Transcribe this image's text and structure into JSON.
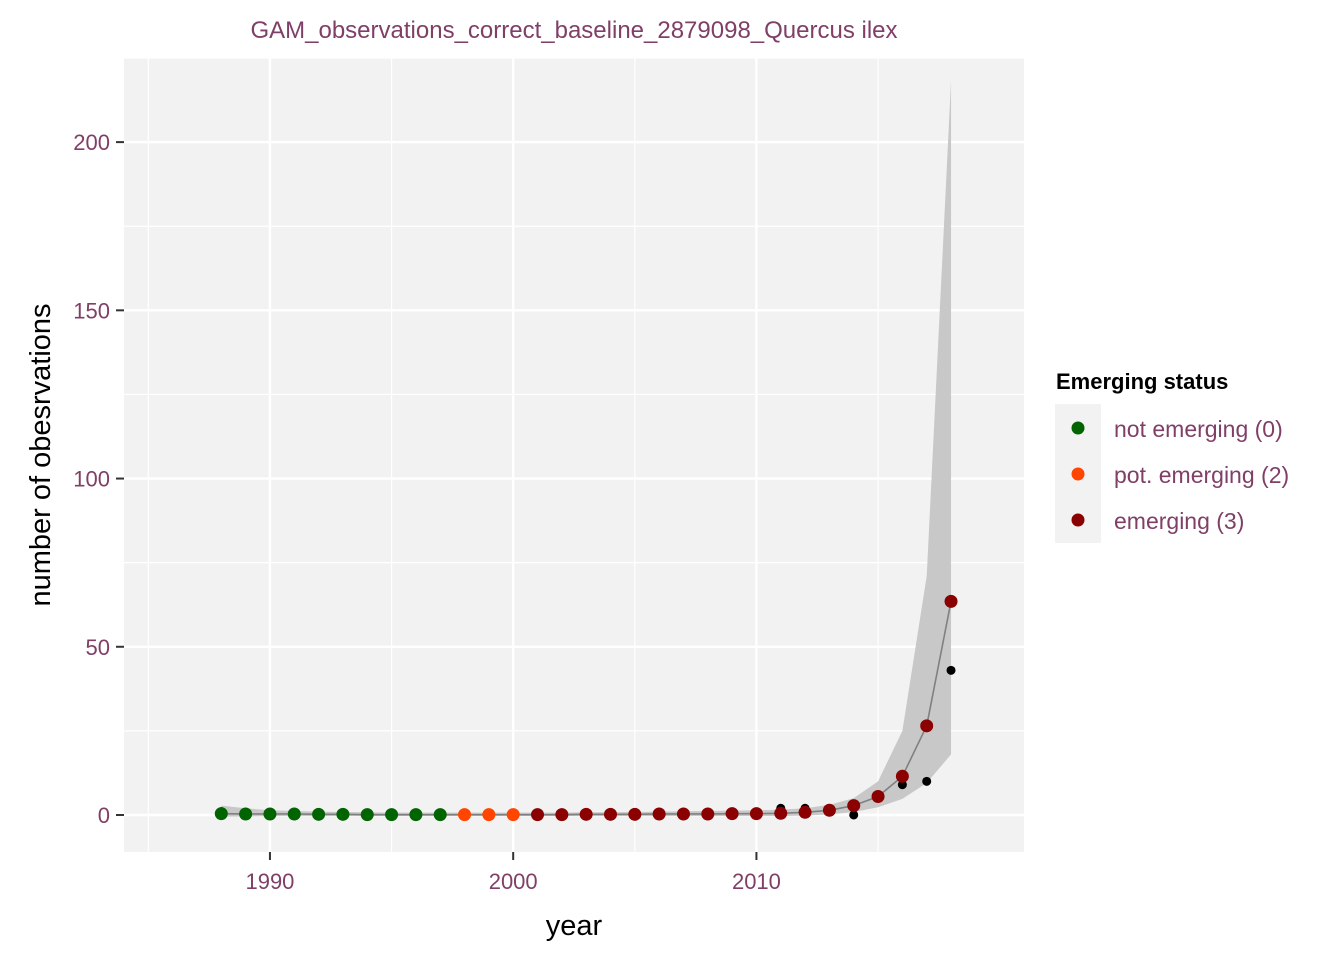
{
  "chart_data": {
    "type": "scatter",
    "title": "GAM_observations_correct_baseline_2879098_Quercus ilex",
    "xlabel": "year",
    "ylabel": "number of obesrvations",
    "xlim": [
      1984,
      2021
    ],
    "ylim": [
      -11,
      225
    ],
    "xticks": [
      1990,
      2000,
      2010
    ],
    "yticks": [
      0,
      50,
      100,
      150,
      200
    ],
    "grid": true,
    "legend": {
      "title": "Emerging status",
      "placement": "right",
      "items": [
        {
          "label": "not emerging (0)",
          "color": "#006400"
        },
        {
          "label": "pot. emerging (2)",
          "color": "#ff4500"
        },
        {
          "label": "emerging (3)",
          "color": "#8b0000"
        }
      ]
    },
    "observed": {
      "color": "#000000",
      "points": [
        [
          1988,
          1
        ],
        [
          1989,
          0
        ],
        [
          1990,
          0
        ],
        [
          1991,
          0
        ],
        [
          1992,
          0
        ],
        [
          1993,
          0
        ],
        [
          1994,
          0
        ],
        [
          1995,
          0
        ],
        [
          1996,
          0
        ],
        [
          1997,
          0
        ],
        [
          1998,
          0
        ],
        [
          1999,
          0
        ],
        [
          2000,
          0
        ],
        [
          2001,
          0
        ],
        [
          2002,
          0
        ],
        [
          2003,
          0
        ],
        [
          2004,
          0
        ],
        [
          2005,
          0
        ],
        [
          2006,
          0
        ],
        [
          2007,
          0
        ],
        [
          2008,
          0
        ],
        [
          2009,
          0
        ],
        [
          2010,
          0
        ],
        [
          2011,
          2
        ],
        [
          2012,
          2
        ],
        [
          2013,
          1
        ],
        [
          2014,
          0
        ],
        [
          2015,
          5
        ],
        [
          2016,
          9
        ],
        [
          2017,
          10
        ],
        [
          2018,
          43
        ]
      ]
    },
    "fit": {
      "line_color": "#808080",
      "band_color": "#c8c8c8",
      "x": [
        1988,
        1989,
        1990,
        1991,
        1992,
        1993,
        1994,
        1995,
        1996,
        1997,
        1998,
        1999,
        2000,
        2001,
        2002,
        2003,
        2004,
        2005,
        2006,
        2007,
        2008,
        2009,
        2010,
        2011,
        2012,
        2013,
        2014,
        2015,
        2016,
        2017,
        2018
      ],
      "y": [
        0.4,
        0.3,
        0.3,
        0.3,
        0.2,
        0.2,
        0.1,
        0.1,
        0.1,
        0.1,
        0.1,
        0.1,
        0.1,
        0.1,
        0.1,
        0.2,
        0.2,
        0.2,
        0.3,
        0.3,
        0.3,
        0.4,
        0.4,
        0.5,
        0.8,
        1.4,
        2.8,
        5.5,
        11.5,
        26.5,
        63.5
      ],
      "lower": [
        -0.5,
        -0.4,
        -0.3,
        -0.3,
        -0.3,
        -0.3,
        -0.3,
        -0.3,
        -0.3,
        -0.3,
        -0.3,
        -0.3,
        -0.3,
        -0.3,
        -0.3,
        -0.3,
        -0.3,
        -0.3,
        -0.3,
        -0.3,
        -0.3,
        -0.3,
        -0.3,
        -0.3,
        -0.2,
        0.2,
        0.9,
        2.3,
        4.8,
        9.5,
        18.0
      ],
      "upper": [
        2.8,
        2.0,
        1.4,
        1.2,
        1.0,
        0.9,
        0.8,
        0.7,
        0.7,
        0.7,
        0.7,
        0.7,
        0.7,
        0.7,
        0.7,
        0.8,
        0.8,
        0.9,
        1.0,
        1.1,
        1.2,
        1.3,
        1.4,
        1.6,
        2.0,
        3.0,
        5.0,
        10.0,
        25.0,
        71.0,
        218.0
      ]
    },
    "series": [
      {
        "name": "not emerging (0)",
        "color": "#006400",
        "x": [
          1988,
          1989,
          1990,
          1991,
          1992,
          1993,
          1994,
          1995,
          1996,
          1997
        ],
        "values": [
          0.4,
          0.3,
          0.3,
          0.3,
          0.2,
          0.2,
          0.1,
          0.1,
          0.1,
          0.1
        ]
      },
      {
        "name": "pot. emerging (2)",
        "color": "#ff4500",
        "x": [
          1998,
          1999,
          2000
        ],
        "values": [
          0.1,
          0.1,
          0.1
        ]
      },
      {
        "name": "emerging (3)",
        "color": "#8b0000",
        "x": [
          2001,
          2002,
          2003,
          2004,
          2005,
          2006,
          2007,
          2008,
          2009,
          2010,
          2011,
          2012,
          2013,
          2014,
          2015,
          2016,
          2017,
          2018
        ],
        "values": [
          0.1,
          0.1,
          0.2,
          0.2,
          0.2,
          0.3,
          0.3,
          0.3,
          0.4,
          0.4,
          0.5,
          0.8,
          1.4,
          2.8,
          5.5,
          11.5,
          26.5,
          63.5
        ]
      }
    ]
  }
}
